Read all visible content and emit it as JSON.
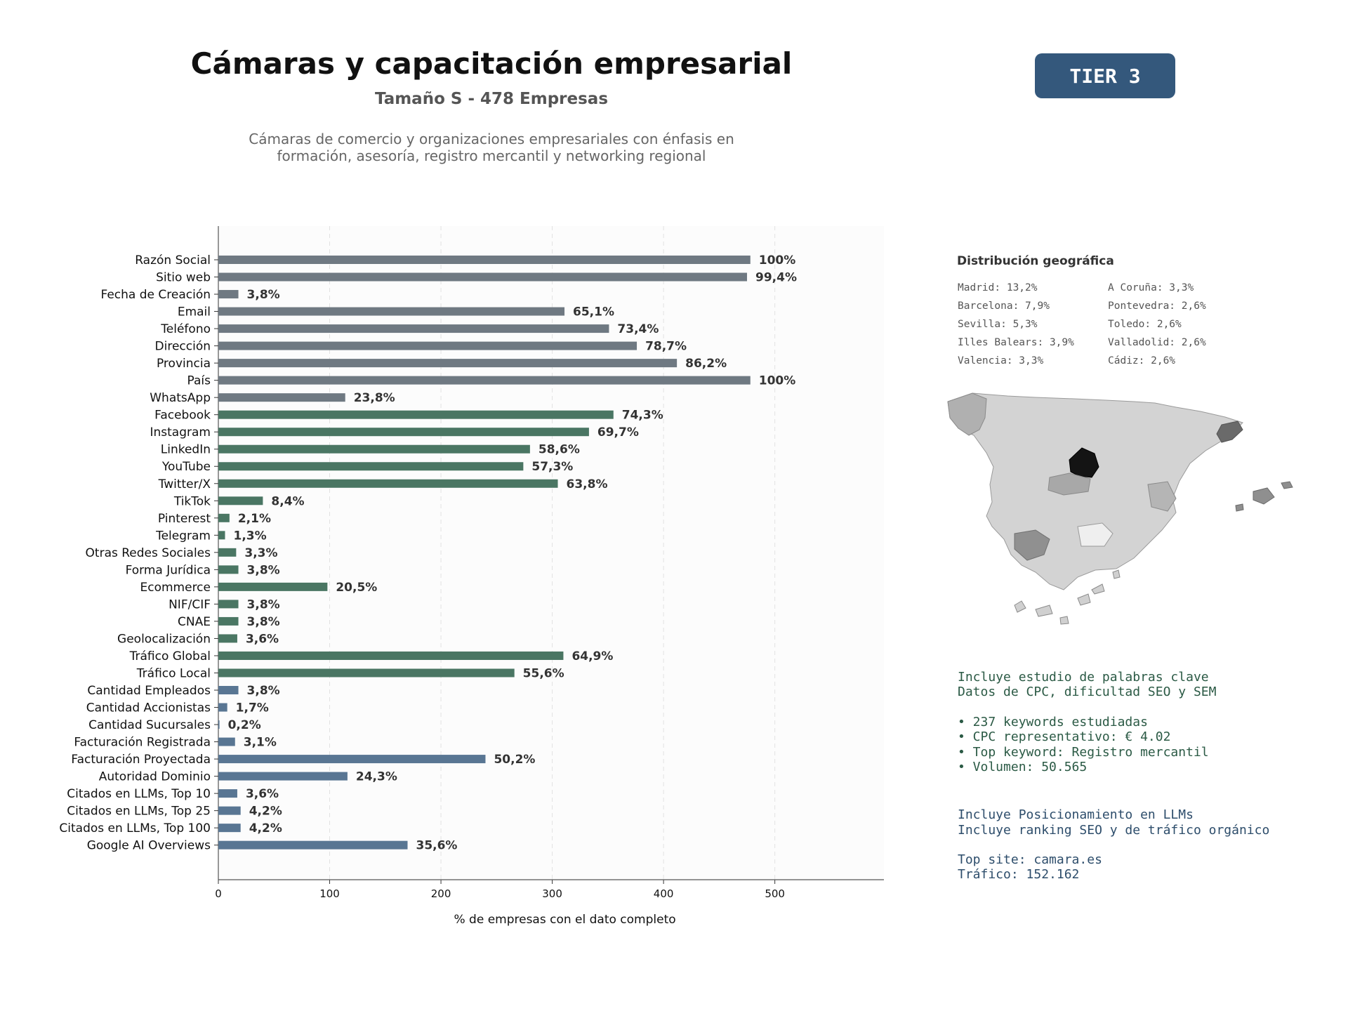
{
  "header": {
    "title": "Cámaras y capacitación empresarial",
    "subtitle": "Tamaño S - 478 Empresas",
    "description_line1": "Cámaras de comercio y organizaciones empresariales con énfasis en",
    "description_line2": "formación, asesoría, registro mercantil y networking regional",
    "tier": "TIER 3"
  },
  "chart_data": {
    "type": "bar",
    "orientation": "horizontal",
    "total": 478,
    "xlabel": "% de empresas con el dato completo",
    "xlim": [
      0,
      598
    ],
    "xticks": [
      0,
      100,
      200,
      300,
      400,
      500
    ],
    "grid": true,
    "colors": {
      "gray": "#6f7982",
      "green": "#4a7663",
      "blue": "#597693"
    },
    "bars": [
      {
        "label": "Razón Social",
        "value": 478,
        "pct": "100%",
        "group": "gray"
      },
      {
        "label": "Sitio web",
        "value": 475,
        "pct": "99,4%",
        "group": "gray"
      },
      {
        "label": "Fecha de Creación",
        "value": 18,
        "pct": "3,8%",
        "group": "gray"
      },
      {
        "label": "Email",
        "value": 311,
        "pct": "65,1%",
        "group": "gray"
      },
      {
        "label": "Teléfono",
        "value": 351,
        "pct": "73,4%",
        "group": "gray"
      },
      {
        "label": "Dirección",
        "value": 376,
        "pct": "78,7%",
        "group": "gray"
      },
      {
        "label": "Provincia",
        "value": 412,
        "pct": "86,2%",
        "group": "gray"
      },
      {
        "label": "País",
        "value": 478,
        "pct": "100%",
        "group": "gray"
      },
      {
        "label": "WhatsApp",
        "value": 114,
        "pct": "23,8%",
        "group": "gray"
      },
      {
        "label": "Facebook",
        "value": 355,
        "pct": "74,3%",
        "group": "green"
      },
      {
        "label": "Instagram",
        "value": 333,
        "pct": "69,7%",
        "group": "green"
      },
      {
        "label": "LinkedIn",
        "value": 280,
        "pct": "58,6%",
        "group": "green"
      },
      {
        "label": "YouTube",
        "value": 274,
        "pct": "57,3%",
        "group": "green"
      },
      {
        "label": "Twitter/X",
        "value": 305,
        "pct": "63,8%",
        "group": "green"
      },
      {
        "label": "TikTok",
        "value": 40,
        "pct": "8,4%",
        "group": "green"
      },
      {
        "label": "Pinterest",
        "value": 10,
        "pct": "2,1%",
        "group": "green"
      },
      {
        "label": "Telegram",
        "value": 6,
        "pct": "1,3%",
        "group": "green"
      },
      {
        "label": "Otras Redes Sociales",
        "value": 16,
        "pct": "3,3%",
        "group": "green"
      },
      {
        "label": "Forma Jurídica",
        "value": 18,
        "pct": "3,8%",
        "group": "green"
      },
      {
        "label": "Ecommerce",
        "value": 98,
        "pct": "20,5%",
        "group": "green"
      },
      {
        "label": "NIF/CIF",
        "value": 18,
        "pct": "3,8%",
        "group": "green"
      },
      {
        "label": "CNAE",
        "value": 18,
        "pct": "3,8%",
        "group": "green"
      },
      {
        "label": "Geolocalización",
        "value": 17,
        "pct": "3,6%",
        "group": "green"
      },
      {
        "label": "Tráfico Global",
        "value": 310,
        "pct": "64,9%",
        "group": "green"
      },
      {
        "label": "Tráfico Local",
        "value": 266,
        "pct": "55,6%",
        "group": "green"
      },
      {
        "label": "Cantidad Empleados",
        "value": 18,
        "pct": "3,8%",
        "group": "blue"
      },
      {
        "label": "Cantidad Accionistas",
        "value": 8,
        "pct": "1,7%",
        "group": "blue"
      },
      {
        "label": "Cantidad Sucursales",
        "value": 1,
        "pct": "0,2%",
        "group": "blue"
      },
      {
        "label": "Facturación Registrada",
        "value": 15,
        "pct": "3,1%",
        "group": "blue"
      },
      {
        "label": "Facturación Proyectada",
        "value": 240,
        "pct": "50,2%",
        "group": "blue"
      },
      {
        "label": "Autoridad Dominio",
        "value": 116,
        "pct": "24,3%",
        "group": "blue"
      },
      {
        "label": "Citados en LLMs, Top 10",
        "value": 17,
        "pct": "3,6%",
        "group": "blue"
      },
      {
        "label": "Citados en LLMs, Top 25",
        "value": 20,
        "pct": "4,2%",
        "group": "blue"
      },
      {
        "label": "Citados en LLMs, Top 100",
        "value": 20,
        "pct": "4,2%",
        "group": "blue"
      },
      {
        "label": "Google AI Overviews",
        "value": 170,
        "pct": "35,6%",
        "group": "blue"
      }
    ]
  },
  "geo": {
    "title": "Distribución geográfica",
    "items": [
      "Madrid: 13,2%",
      "Barcelona: 7,9%",
      "Sevilla: 5,3%",
      "Illes Balears: 3,9%",
      "Valencia: 3,3%",
      "A Coruña: 3,3%",
      "Pontevedra: 2,6%",
      "Toledo: 2,6%",
      "Valladolid: 2,6%",
      "Cádiz: 2,6%"
    ]
  },
  "seo": {
    "line1": "Incluye estudio de palabras clave",
    "line2": "Datos de CPC, dificultad SEO y SEM",
    "bullet1": "• 237 keywords estudiadas",
    "bullet2": "• CPC representativo: € 4.02",
    "bullet3": "• Top keyword: Registro mercantil",
    "bullet4": "• Volumen: 50.565"
  },
  "llm": {
    "line1": "Incluye Posicionamiento en LLMs",
    "line2": "Incluye ranking SEO y de tráfico orgánico",
    "site": "Top site: camara.es",
    "traffic": "Tráfico: 152.162"
  }
}
